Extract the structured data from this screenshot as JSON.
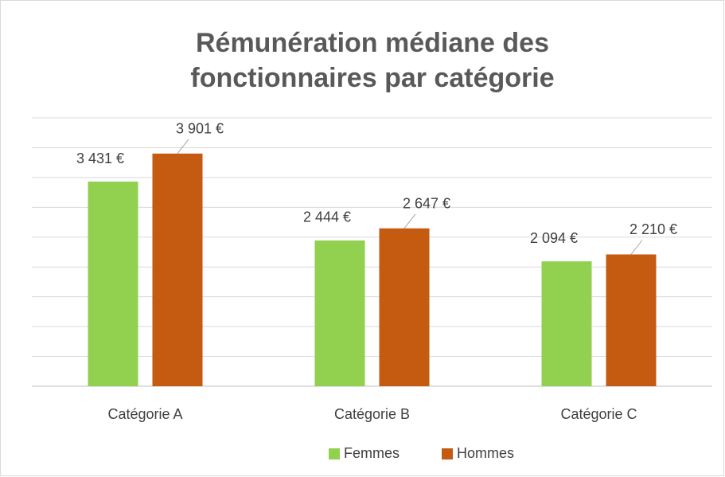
{
  "chart_data": {
    "type": "bar",
    "title": "Rémunération médiane des fonctionnaires par catégorie",
    "categories": [
      "Catégorie A",
      "Catégorie B",
      "Catégorie C"
    ],
    "series": [
      {
        "name": "Femmes",
        "color": "#92d050",
        "values": [
          3431,
          2444,
          2094
        ],
        "value_labels": [
          "3 431 €",
          "2 444 €",
          "2 094 €"
        ]
      },
      {
        "name": "Hommes",
        "color": "#c55a11",
        "values": [
          3901,
          2647,
          2210
        ],
        "value_labels": [
          "3 901 €",
          "2 647 €",
          "2 210 €"
        ]
      }
    ],
    "ylim": [
      0,
      4500
    ],
    "yticks": [
      0,
      500,
      1000,
      1500,
      2000,
      2500,
      3000,
      3500,
      4000,
      4500
    ],
    "grid": true,
    "legend": "bottom"
  }
}
